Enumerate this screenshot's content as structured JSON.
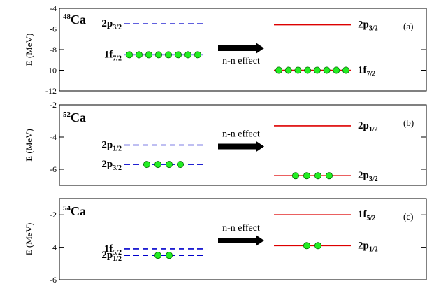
{
  "chart_data": [
    {
      "type": "level-scheme",
      "tag": "(a)",
      "nucleus": {
        "mass": "48",
        "symbol": "Ca"
      },
      "ylabel": "E (MeV)",
      "ylim": [
        -12,
        -4
      ],
      "yticks": [
        -12,
        -10,
        -8,
        -6,
        -4
      ],
      "arrow_label": "n-n effect",
      "levels": [
        {
          "side": "left",
          "name": "2p",
          "sub": "3/2",
          "energy": -5.5,
          "style": "dashed",
          "color": "#0000cc",
          "occupancy": 0
        },
        {
          "side": "left",
          "name": "1f",
          "sub": "7/2",
          "energy": -8.5,
          "style": "dashed",
          "color": "#0000cc",
          "occupancy": 8
        },
        {
          "side": "right",
          "name": "2p",
          "sub": "3/2",
          "energy": -5.6,
          "style": "solid",
          "color": "#dd0000",
          "occupancy": 0
        },
        {
          "side": "right",
          "name": "1f",
          "sub": "7/2",
          "energy": -10.0,
          "style": "solid",
          "color": "#dd0000",
          "occupancy": 8
        }
      ]
    },
    {
      "type": "level-scheme",
      "tag": "(b)",
      "nucleus": {
        "mass": "52",
        "symbol": "Ca"
      },
      "ylabel": "E (MeV)",
      "ylim": [
        -7,
        -2
      ],
      "yticks": [
        -6,
        -4,
        -2
      ],
      "arrow_label": "n-n effect",
      "levels": [
        {
          "side": "left",
          "name": "2p",
          "sub": "1/2",
          "energy": -4.5,
          "style": "dashed",
          "color": "#0000cc",
          "occupancy": 0
        },
        {
          "side": "left",
          "name": "2p",
          "sub": "3/2",
          "energy": -5.7,
          "style": "dashed",
          "color": "#0000cc",
          "occupancy": 4
        },
        {
          "side": "right",
          "name": "2p",
          "sub": "1/2",
          "energy": -3.3,
          "style": "solid",
          "color": "#dd0000",
          "occupancy": 0
        },
        {
          "side": "right",
          "name": "2p",
          "sub": "3/2",
          "energy": -6.4,
          "style": "solid",
          "color": "#dd0000",
          "occupancy": 4
        }
      ]
    },
    {
      "type": "level-scheme",
      "tag": "(c)",
      "nucleus": {
        "mass": "54",
        "symbol": "Ca"
      },
      "ylabel": "E (MeV)",
      "ylim": [
        -6,
        -1
      ],
      "yticks": [
        -6,
        -4,
        -2
      ],
      "arrow_label": "n-n effect",
      "levels": [
        {
          "side": "left",
          "name": "1f",
          "sub": "5/2",
          "energy": -4.1,
          "style": "dashed",
          "color": "#0000cc",
          "occupancy": 0
        },
        {
          "side": "left",
          "name": "2p",
          "sub": "1/2",
          "energy": -4.5,
          "style": "dashed",
          "color": "#0000cc",
          "occupancy": 2
        },
        {
          "side": "right",
          "name": "1f",
          "sub": "5/2",
          "energy": -2.0,
          "style": "solid",
          "color": "#dd0000",
          "occupancy": 0
        },
        {
          "side": "right",
          "name": "2p",
          "sub": "1/2",
          "energy": -3.9,
          "style": "solid",
          "color": "#dd0000",
          "occupancy": 2
        }
      ]
    }
  ],
  "colors": {
    "nucleon_fill": "#22ee22",
    "nucleon_stroke": "#006600",
    "arrow": "#000000",
    "axis": "#000000"
  }
}
